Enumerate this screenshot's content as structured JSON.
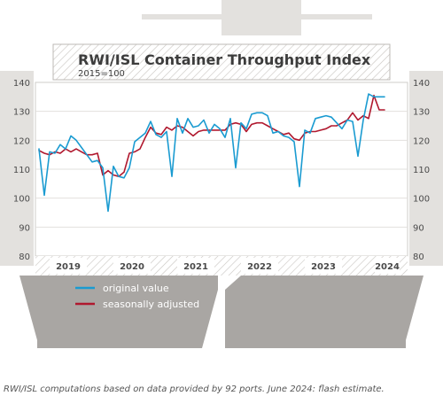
{
  "chart_data": {
    "type": "line",
    "title": "RWI/ISL Container Throughput Index",
    "subtitle": "2015=100",
    "ylim": [
      80,
      140
    ],
    "y_ticks": [
      80,
      90,
      100,
      110,
      120,
      130,
      140
    ],
    "years": [
      "2019",
      "2020",
      "2021",
      "2022",
      "2023",
      "2024"
    ],
    "x": [
      "2019-01",
      "2019-02",
      "2019-03",
      "2019-04",
      "2019-05",
      "2019-06",
      "2019-07",
      "2019-08",
      "2019-09",
      "2019-10",
      "2019-11",
      "2019-12",
      "2020-01",
      "2020-02",
      "2020-03",
      "2020-04",
      "2020-05",
      "2020-06",
      "2020-07",
      "2020-08",
      "2020-09",
      "2020-10",
      "2020-11",
      "2020-12",
      "2021-01",
      "2021-02",
      "2021-03",
      "2021-04",
      "2021-05",
      "2021-06",
      "2021-07",
      "2021-08",
      "2021-09",
      "2021-10",
      "2021-11",
      "2021-12",
      "2022-01",
      "2022-02",
      "2022-03",
      "2022-04",
      "2022-05",
      "2022-06",
      "2022-07",
      "2022-08",
      "2022-09",
      "2022-10",
      "2022-11",
      "2022-12",
      "2023-01",
      "2023-02",
      "2023-03",
      "2023-04",
      "2023-05",
      "2023-06",
      "2023-07",
      "2023-08",
      "2023-09",
      "2023-10",
      "2023-11",
      "2023-12",
      "2024-01",
      "2024-02",
      "2024-03",
      "2024-04",
      "2024-05",
      "2024-06"
    ],
    "series": [
      {
        "name": "original value",
        "color": "#1a9bd1",
        "values": [
          117.0,
          101.0,
          116.0,
          115.5,
          118.5,
          117.0,
          121.5,
          120.0,
          117.5,
          115.0,
          112.5,
          113.0,
          110.5,
          95.5,
          111.0,
          107.5,
          107.0,
          110.5,
          119.5,
          121.0,
          122.5,
          126.5,
          122.0,
          121.0,
          123.0,
          107.5,
          127.5,
          122.5,
          127.5,
          124.5,
          125.0,
          127.0,
          122.5,
          125.5,
          124.0,
          121.0,
          127.5,
          110.5,
          126.0,
          124.0,
          129.0,
          129.5,
          129.5,
          128.5,
          122.5,
          123.0,
          121.5,
          121.0,
          119.5,
          104.0,
          123.5,
          122.5,
          127.5,
          128.0,
          128.5,
          128.0,
          126.0,
          124.0,
          127.0,
          126.5,
          114.5,
          127.0,
          136.0,
          135.0,
          135.0,
          135.0
        ]
      },
      {
        "name": "seasonally adjusted",
        "color": "#b0182e",
        "values": [
          116.5,
          115.5,
          115.0,
          116.0,
          115.5,
          117.0,
          116.0,
          117.0,
          116.0,
          115.0,
          115.0,
          115.5,
          108.0,
          109.5,
          108.0,
          107.5,
          109.0,
          115.5,
          116.0,
          117.0,
          121.0,
          124.5,
          122.5,
          122.0,
          124.5,
          123.5,
          125.0,
          124.5,
          123.0,
          121.5,
          123.0,
          123.5,
          123.5,
          123.5,
          123.5,
          123.5,
          125.5,
          126.0,
          125.5,
          123.0,
          125.5,
          126.0,
          126.0,
          125.0,
          124.0,
          123.0,
          122.0,
          122.5,
          120.5,
          120.0,
          122.5,
          123.0,
          123.0,
          123.5,
          124.0,
          125.0,
          125.0,
          126.0,
          127.0,
          129.5,
          127.0,
          128.5,
          127.5,
          135.5,
          130.5,
          130.5
        ]
      }
    ],
    "legend_position": "bottom-left"
  },
  "source_note": "RWI/ISL computations based on data provided by 92 ports. June 2024: flash estimate."
}
